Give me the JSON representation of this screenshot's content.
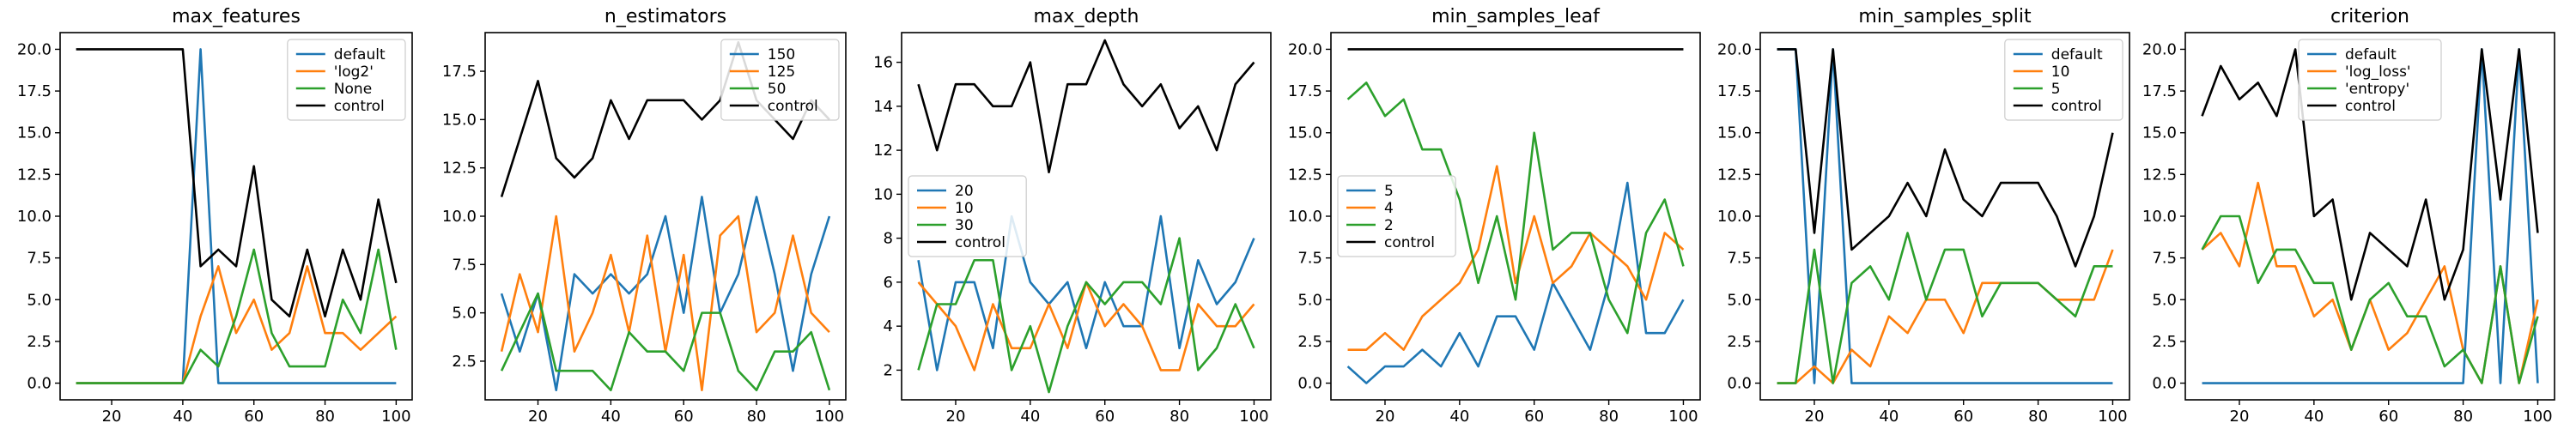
{
  "chart_data": [
    {
      "type": "line",
      "title": "max_features",
      "xlim": [
        5.5,
        104.5
      ],
      "ylim": [
        -1.0,
        21.0
      ],
      "xticks": [
        20,
        40,
        60,
        80,
        100
      ],
      "yticks": [
        0.0,
        2.5,
        5.0,
        7.5,
        10.0,
        12.5,
        15.0,
        17.5,
        20.0
      ],
      "ytick_labels": [
        "0.0",
        "2.5",
        "5.0",
        "7.5",
        "10.0",
        "12.5",
        "15.0",
        "17.5",
        "20.0"
      ],
      "legend": "upper right",
      "x": [
        10,
        15,
        20,
        25,
        30,
        35,
        40,
        45,
        50,
        55,
        60,
        65,
        70,
        75,
        80,
        85,
        90,
        95,
        100
      ],
      "series": [
        {
          "name": "default",
          "color": "#1f77b4",
          "values": [
            0,
            0,
            0,
            0,
            0,
            0,
            0,
            20,
            0,
            0,
            0,
            0,
            0,
            0,
            0,
            0,
            0,
            0,
            0
          ]
        },
        {
          "name": "'log2'",
          "color": "#ff7f0e",
          "values": [
            0,
            0,
            0,
            0,
            0,
            0,
            0,
            4,
            7,
            3,
            5,
            2,
            3,
            7,
            3,
            3,
            2,
            3,
            4
          ]
        },
        {
          "name": "None",
          "color": "#2ca02c",
          "values": [
            0,
            0,
            0,
            0,
            0,
            0,
            0,
            2,
            1,
            4,
            8,
            3,
            1,
            1,
            1,
            5,
            3,
            8,
            2
          ]
        },
        {
          "name": "control",
          "color": "#000000",
          "values": [
            20,
            20,
            20,
            20,
            20,
            20,
            20,
            7,
            8,
            7,
            13,
            5,
            4,
            8,
            4,
            8,
            5,
            11,
            6
          ]
        }
      ]
    },
    {
      "type": "line",
      "title": "n_estimators",
      "xlim": [
        5.5,
        104.5
      ],
      "ylim": [
        0.5,
        19.5
      ],
      "xticks": [
        20,
        40,
        60,
        80,
        100
      ],
      "yticks": [
        2.5,
        5.0,
        7.5,
        10.0,
        12.5,
        15.0,
        17.5
      ],
      "ytick_labels": [
        "2.5",
        "5.0",
        "7.5",
        "10.0",
        "12.5",
        "15.0",
        "17.5"
      ],
      "legend": "upper right",
      "x": [
        10,
        15,
        20,
        25,
        30,
        35,
        40,
        45,
        50,
        55,
        60,
        65,
        70,
        75,
        80,
        85,
        90,
        95,
        100
      ],
      "series": [
        {
          "name": "150",
          "color": "#1f77b4",
          "values": [
            6,
            3,
            6,
            1,
            7,
            6,
            7,
            6,
            7,
            10,
            5,
            11,
            5,
            7,
            11,
            7,
            2,
            7,
            10
          ]
        },
        {
          "name": "125",
          "color": "#ff7f0e",
          "values": [
            3,
            7,
            4,
            10,
            3,
            5,
            8,
            4,
            9,
            3,
            8,
            1,
            9,
            10,
            4,
            5,
            9,
            5,
            4
          ]
        },
        {
          "name": "50",
          "color": "#2ca02c",
          "values": [
            2,
            4,
            6,
            2,
            2,
            2,
            1,
            4,
            3,
            3,
            2,
            5,
            5,
            2,
            1,
            3,
            3,
            4,
            1
          ]
        },
        {
          "name": "control",
          "color": "#000000",
          "values": [
            11,
            14,
            17,
            13,
            12,
            13,
            16,
            14,
            16,
            16,
            16,
            15,
            16,
            19,
            16,
            15,
            14,
            16,
            15
          ]
        }
      ]
    },
    {
      "type": "line",
      "title": "max_depth",
      "xlim": [
        5.5,
        104.5
      ],
      "ylim": [
        0.65,
        17.35
      ],
      "xticks": [
        20,
        40,
        60,
        80,
        100
      ],
      "yticks": [
        2,
        4,
        6,
        8,
        10,
        12,
        14,
        16
      ],
      "ytick_labels": [
        "2",
        "4",
        "6",
        "8",
        "10",
        "12",
        "14",
        "16"
      ],
      "legend": "center left",
      "x": [
        10,
        15,
        20,
        25,
        30,
        35,
        40,
        45,
        50,
        55,
        60,
        65,
        70,
        75,
        80,
        85,
        90,
        95,
        100
      ],
      "series": [
        {
          "name": "20",
          "color": "#1f77b4",
          "values": [
            7,
            2,
            6,
            6,
            3,
            9,
            6,
            5,
            6,
            3,
            6,
            4,
            4,
            9,
            3,
            7,
            5,
            6,
            8
          ]
        },
        {
          "name": "10",
          "color": "#ff7f0e",
          "values": [
            6,
            5,
            4,
            2,
            5,
            3,
            3,
            5,
            3,
            6,
            4,
            5,
            4,
            2,
            2,
            5,
            4,
            4,
            5
          ]
        },
        {
          "name": "30",
          "color": "#2ca02c",
          "values": [
            2,
            5,
            5,
            7,
            7,
            2,
            4,
            1,
            4,
            6,
            5,
            6,
            6,
            5,
            8,
            2,
            3,
            5,
            3
          ]
        },
        {
          "name": "control",
          "color": "#000000",
          "values": [
            15,
            12,
            15,
            15,
            14,
            14,
            16,
            11,
            15,
            15,
            17,
            15,
            14,
            15,
            13,
            14,
            12,
            15,
            16
          ]
        }
      ]
    },
    {
      "type": "line",
      "title": "min_samples_leaf",
      "xlim": [
        5.5,
        104.5
      ],
      "ylim": [
        -1.0,
        21.0
      ],
      "xticks": [
        20,
        40,
        60,
        80,
        100
      ],
      "yticks": [
        0.0,
        2.5,
        5.0,
        7.5,
        10.0,
        12.5,
        15.0,
        17.5,
        20.0
      ],
      "ytick_labels": [
        "0.0",
        "2.5",
        "5.0",
        "7.5",
        "10.0",
        "12.5",
        "15.0",
        "17.5",
        "20.0"
      ],
      "legend": "center left",
      "x": [
        10,
        15,
        20,
        25,
        30,
        35,
        40,
        45,
        50,
        55,
        60,
        65,
        70,
        75,
        80,
        85,
        90,
        95,
        100
      ],
      "series": [
        {
          "name": "5",
          "color": "#1f77b4",
          "values": [
            1,
            0,
            1,
            1,
            2,
            1,
            3,
            1,
            4,
            4,
            2,
            6,
            4,
            2,
            6,
            12,
            3,
            3,
            5
          ]
        },
        {
          "name": "4",
          "color": "#ff7f0e",
          "values": [
            2,
            2,
            3,
            2,
            4,
            5,
            6,
            8,
            13,
            6,
            10,
            6,
            7,
            9,
            8,
            7,
            5,
            9,
            8
          ]
        },
        {
          "name": "2",
          "color": "#2ca02c",
          "values": [
            17,
            18,
            16,
            17,
            14,
            14,
            11,
            6,
            10,
            5,
            15,
            8,
            9,
            9,
            5,
            3,
            9,
            11,
            7
          ]
        },
        {
          "name": "control",
          "color": "#000000",
          "values": [
            20,
            20,
            20,
            20,
            20,
            20,
            20,
            20,
            20,
            20,
            20,
            20,
            20,
            20,
            20,
            20,
            20,
            20,
            20
          ]
        }
      ]
    },
    {
      "type": "line",
      "title": "min_samples_split",
      "xlim": [
        5.5,
        104.5
      ],
      "ylim": [
        -1.0,
        21.0
      ],
      "xticks": [
        20,
        40,
        60,
        80,
        100
      ],
      "yticks": [
        0.0,
        2.5,
        5.0,
        7.5,
        10.0,
        12.5,
        15.0,
        17.5,
        20.0
      ],
      "ytick_labels": [
        "0.0",
        "2.5",
        "5.0",
        "7.5",
        "10.0",
        "12.5",
        "15.0",
        "17.5",
        "20.0"
      ],
      "legend": "upper right",
      "x": [
        10,
        15,
        20,
        25,
        30,
        35,
        40,
        45,
        50,
        55,
        60,
        65,
        70,
        75,
        80,
        85,
        90,
        95,
        100
      ],
      "series": [
        {
          "name": "default",
          "color": "#1f77b4",
          "values": [
            20,
            20,
            0,
            20,
            0,
            0,
            0,
            0,
            0,
            0,
            0,
            0,
            0,
            0,
            0,
            0,
            0,
            0,
            0
          ]
        },
        {
          "name": "10",
          "color": "#ff7f0e",
          "values": [
            0,
            0,
            1,
            0,
            2,
            1,
            4,
            3,
            5,
            5,
            3,
            6,
            6,
            6,
            6,
            5,
            5,
            5,
            8
          ]
        },
        {
          "name": "5",
          "color": "#2ca02c",
          "values": [
            0,
            0,
            8,
            0,
            6,
            7,
            5,
            9,
            5,
            8,
            8,
            4,
            6,
            6,
            6,
            5,
            4,
            7,
            7
          ]
        },
        {
          "name": "control",
          "color": "#000000",
          "values": [
            20,
            20,
            9,
            20,
            8,
            9,
            10,
            12,
            10,
            14,
            11,
            10,
            12,
            12,
            12,
            10,
            7,
            10,
            15
          ]
        }
      ]
    },
    {
      "type": "line",
      "title": "criterion",
      "xlim": [
        5.5,
        104.5
      ],
      "ylim": [
        -1.0,
        21.0
      ],
      "xticks": [
        20,
        40,
        60,
        80,
        100
      ],
      "yticks": [
        0.0,
        2.5,
        5.0,
        7.5,
        10.0,
        12.5,
        15.0,
        17.5,
        20.0
      ],
      "ytick_labels": [
        "0.0",
        "2.5",
        "5.0",
        "7.5",
        "10.0",
        "12.5",
        "15.0",
        "17.5",
        "20.0"
      ],
      "legend": "upper center",
      "x": [
        10,
        15,
        20,
        25,
        30,
        35,
        40,
        45,
        50,
        55,
        60,
        65,
        70,
        75,
        80,
        85,
        90,
        95,
        100
      ],
      "series": [
        {
          "name": "default",
          "color": "#1f77b4",
          "values": [
            0,
            0,
            0,
            0,
            0,
            0,
            0,
            0,
            0,
            0,
            0,
            0,
            0,
            0,
            0,
            20,
            0,
            20,
            0
          ]
        },
        {
          "name": "'log_loss'",
          "color": "#ff7f0e",
          "values": [
            8,
            9,
            7,
            12,
            7,
            7,
            4,
            5,
            2,
            5,
            2,
            3,
            5,
            7,
            2,
            0,
            7,
            0,
            5
          ]
        },
        {
          "name": "'entropy'",
          "color": "#2ca02c",
          "values": [
            8,
            10,
            10,
            6,
            8,
            8,
            6,
            6,
            2,
            5,
            6,
            4,
            4,
            1,
            2,
            0,
            7,
            0,
            4
          ]
        },
        {
          "name": "control",
          "color": "#000000",
          "values": [
            16,
            19,
            17,
            18,
            16,
            20,
            10,
            11,
            5,
            9,
            8,
            7,
            11,
            5,
            8,
            20,
            11,
            20,
            9
          ]
        }
      ]
    }
  ]
}
